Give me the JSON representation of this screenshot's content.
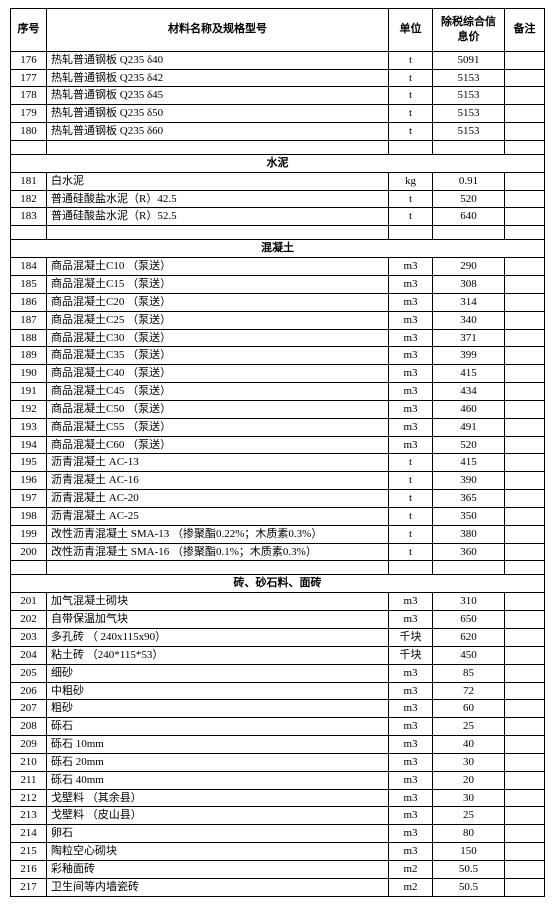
{
  "header": {
    "c0": "序号",
    "c1": "材料名称及规格型号",
    "c2": "单位",
    "c3": "除税综合信息价",
    "c4": "备注"
  },
  "sections": [
    {
      "rows": [
        {
          "idx": "176",
          "name": "热轧普通钢板 Q235 δ40",
          "unit": "t",
          "price": "5091",
          "note": ""
        },
        {
          "idx": "177",
          "name": "热轧普通钢板 Q235 δ42",
          "unit": "t",
          "price": "5153",
          "note": ""
        },
        {
          "idx": "178",
          "name": "热轧普通钢板 Q235 δ45",
          "unit": "t",
          "price": "5153",
          "note": ""
        },
        {
          "idx": "179",
          "name": "热轧普通钢板 Q235 δ50",
          "unit": "t",
          "price": "5153",
          "note": ""
        },
        {
          "idx": "180",
          "name": "热轧普通钢板 Q235 δ60",
          "unit": "t",
          "price": "5153",
          "note": ""
        }
      ]
    },
    {
      "title": "水泥",
      "rows": [
        {
          "idx": "181",
          "name": "白水泥",
          "unit": "kg",
          "price": "0.91",
          "note": ""
        },
        {
          "idx": "182",
          "name": "普通硅酸盐水泥（R）42.5",
          "unit": "t",
          "price": "520",
          "note": ""
        },
        {
          "idx": "183",
          "name": "普通硅酸盐水泥（R）52.5",
          "unit": "t",
          "price": "640",
          "note": ""
        }
      ]
    },
    {
      "title": "混凝土",
      "rows": [
        {
          "idx": "184",
          "name": "商品混凝土C10 （泵送）",
          "unit": "m3",
          "price": "290",
          "note": ""
        },
        {
          "idx": "185",
          "name": "商品混凝土C15 （泵送）",
          "unit": "m3",
          "price": "308",
          "note": ""
        },
        {
          "idx": "186",
          "name": "商品混凝土C20 （泵送）",
          "unit": "m3",
          "price": "314",
          "note": ""
        },
        {
          "idx": "187",
          "name": "商品混凝土C25 （泵送）",
          "unit": "m3",
          "price": "340",
          "note": ""
        },
        {
          "idx": "188",
          "name": "商品混凝土C30 （泵送）",
          "unit": "m3",
          "price": "371",
          "note": ""
        },
        {
          "idx": "189",
          "name": "商品混凝土C35 （泵送）",
          "unit": "m3",
          "price": "399",
          "note": ""
        },
        {
          "idx": "190",
          "name": "商品混凝土C40 （泵送）",
          "unit": "m3",
          "price": "415",
          "note": ""
        },
        {
          "idx": "191",
          "name": "商品混凝土C45 （泵送）",
          "unit": "m3",
          "price": "434",
          "note": ""
        },
        {
          "idx": "192",
          "name": "商品混凝土C50 （泵送）",
          "unit": "m3",
          "price": "460",
          "note": ""
        },
        {
          "idx": "193",
          "name": "商品混凝土C55 （泵送）",
          "unit": "m3",
          "price": "491",
          "note": ""
        },
        {
          "idx": "194",
          "name": "商品混凝土C60 （泵送）",
          "unit": "m3",
          "price": "520",
          "note": ""
        },
        {
          "idx": "195",
          "name": "沥青混凝土  AC-13",
          "unit": "t",
          "price": "415",
          "note": ""
        },
        {
          "idx": "196",
          "name": "沥青混凝土  AC-16",
          "unit": "t",
          "price": "390",
          "note": ""
        },
        {
          "idx": "197",
          "name": "沥青混凝土  AC-20",
          "unit": "t",
          "price": "365",
          "note": ""
        },
        {
          "idx": "198",
          "name": "沥青混凝土  AC-25",
          "unit": "t",
          "price": "350",
          "note": ""
        },
        {
          "idx": "199",
          "name": "改性沥青混凝土 SMA-13 （掺聚酯0.22%；木质素0.3%）",
          "unit": "t",
          "price": "380",
          "note": ""
        },
        {
          "idx": "200",
          "name": "改性沥青混凝土 SMA-16 （掺聚酯0.1%；木质素0.3%）",
          "unit": "t",
          "price": "360",
          "note": ""
        }
      ]
    },
    {
      "title": "砖、砂石料、面砖",
      "rows": [
        {
          "idx": "201",
          "name": "加气混凝土砌块",
          "unit": "m3",
          "price": "310",
          "note": ""
        },
        {
          "idx": "202",
          "name": "自带保温加气块",
          "unit": "m3",
          "price": "650",
          "note": ""
        },
        {
          "idx": "203",
          "name": "多孔砖 （ 240x115x90）",
          "unit": "千块",
          "price": "620",
          "note": ""
        },
        {
          "idx": "204",
          "name": "粘土砖 （240*115*53）",
          "unit": "千块",
          "price": "450",
          "note": ""
        },
        {
          "idx": "205",
          "name": "细砂",
          "unit": "m3",
          "price": "85",
          "note": ""
        },
        {
          "idx": "206",
          "name": "中粗砂",
          "unit": "m3",
          "price": "72",
          "note": ""
        },
        {
          "idx": "207",
          "name": "粗砂",
          "unit": "m3",
          "price": "60",
          "note": ""
        },
        {
          "idx": "208",
          "name": "砾石",
          "unit": "m3",
          "price": "25",
          "note": ""
        },
        {
          "idx": "209",
          "name": "砾石 10mm",
          "unit": "m3",
          "price": "40",
          "note": ""
        },
        {
          "idx": "210",
          "name": "砾石 20mm",
          "unit": "m3",
          "price": "30",
          "note": ""
        },
        {
          "idx": "211",
          "name": "砾石 40mm",
          "unit": "m3",
          "price": "20",
          "note": ""
        },
        {
          "idx": "212",
          "name": "戈壁料 （其余县）",
          "unit": "m3",
          "price": "30",
          "note": ""
        },
        {
          "idx": "213",
          "name": "戈壁料 （皮山县）",
          "unit": "m3",
          "price": "25",
          "note": ""
        },
        {
          "idx": "214",
          "name": "卵石",
          "unit": "m3",
          "price": "80",
          "note": ""
        },
        {
          "idx": "215",
          "name": "陶粒空心砌块",
          "unit": "m3",
          "price": "150",
          "note": ""
        },
        {
          "idx": "216",
          "name": "彩釉面砖",
          "unit": "m2",
          "price": "50.5",
          "note": ""
        },
        {
          "idx": "217",
          "name": "卫生间等内墙瓷砖",
          "unit": "m2",
          "price": "50.5",
          "note": ""
        }
      ]
    }
  ]
}
